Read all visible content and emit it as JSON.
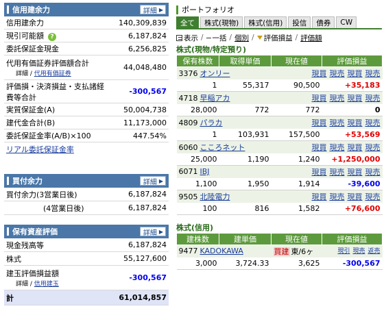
{
  "credit_panel": {
    "title": "信用建余力",
    "detail_label": "詳細",
    "rows": [
      {
        "label": "信用建余力",
        "value": "140,309,839"
      },
      {
        "label": "現引可能額",
        "value": "6,187,824"
      },
      {
        "label": "委託保証金現金",
        "value": "6,256,825"
      },
      {
        "label": "代用有価証券評価額合計",
        "value": "44,048,480",
        "sub_prefix": "詳細 / ",
        "sub_link": "代用有価証券"
      },
      {
        "label1": "評価損・決済損益・支払諸経",
        "label2": "費等合計",
        "value": "-300,567"
      },
      {
        "label": "実質保証金(A)",
        "value": "50,004,738"
      },
      {
        "label": "建代金合計(B)",
        "value": "11,173,000"
      },
      {
        "label": "委託保証金率(A/B)×100",
        "value": "447.54%"
      }
    ],
    "link": "リアル委託保証金率",
    "help_icon": "question-icon"
  },
  "buying_panel": {
    "title": "買付余力",
    "detail_label": "詳細",
    "rows": [
      {
        "label": "買付余力(3営業日後)",
        "value": "6,187,824"
      },
      {
        "label": "(4営業日後)",
        "value": "6,187,824"
      }
    ]
  },
  "assets_panel": {
    "title": "保有資産評価",
    "detail_label": "詳細",
    "rows": [
      {
        "label": "現金残高等",
        "value": "6,187,824"
      },
      {
        "label": "株式",
        "value": "55,127,600"
      },
      {
        "label": "建玉評価損益額",
        "value": "-300,567",
        "sub_prefix": "詳細 / ",
        "sub_link": "信用建玉"
      }
    ],
    "total": {
      "label": "計",
      "value": "61,014,857"
    }
  },
  "portfolio": {
    "title": "ポートフォリオ",
    "tabs": [
      "全て",
      "株式(現物)",
      "株式(信用)",
      "投信",
      "債券",
      "CW"
    ],
    "active_tab": 0,
    "toolbar": {
      "display": "表示",
      "sep": "/",
      "ikkatsu": "一括",
      "kobetsu": "個別",
      "pnl": "評価損益",
      "value": "評価額"
    }
  },
  "cash_stocks": {
    "title": "株式(現物/特定預り)",
    "headers": [
      "保有株数",
      "取得単価",
      "現在値",
      "評価損益"
    ],
    "actions": [
      "現買",
      "現売",
      "現買",
      "現売"
    ],
    "items": [
      {
        "code": "3376",
        "name": "オンリー",
        "qty": "1",
        "cost": "55,317",
        "price": "90,500",
        "pnl": "+35,183",
        "sign": "pos"
      },
      {
        "code": "4718",
        "name": "早稲アカ",
        "qty": "28,000",
        "cost": "772",
        "price": "772",
        "pnl": "0",
        "sign": "zero"
      },
      {
        "code": "4809",
        "name": "パラカ",
        "qty": "1",
        "cost": "103,931",
        "price": "157,500",
        "pnl": "+53,569",
        "sign": "pos"
      },
      {
        "code": "6060",
        "name": "こころネット",
        "qty": "25,000",
        "cost": "1,190",
        "price": "1,240",
        "pnl": "+1,250,000",
        "sign": "pos"
      },
      {
        "code": "6071",
        "name": "IBJ",
        "qty": "1,100",
        "cost": "1,950",
        "price": "1,914",
        "pnl": "-39,600",
        "sign": "neg"
      },
      {
        "code": "9505",
        "name": "北陸電力",
        "qty": "100",
        "cost": "816",
        "price": "1,582",
        "pnl": "+76,600",
        "sign": "pos"
      }
    ]
  },
  "margin_stocks": {
    "title": "株式(信用)",
    "headers": [
      "建株数",
      "建単価",
      "現在値",
      "評価損益"
    ],
    "actions": [
      "現引",
      "現売",
      "返売"
    ],
    "items": [
      {
        "code": "9477",
        "name": "KADOKAWA",
        "type": "買建",
        "market": "東/6ヶ",
        "qty": "3,000",
        "cost": "3,724.33",
        "price": "3,625",
        "pnl": "-300,567",
        "sign": "neg"
      }
    ]
  }
}
